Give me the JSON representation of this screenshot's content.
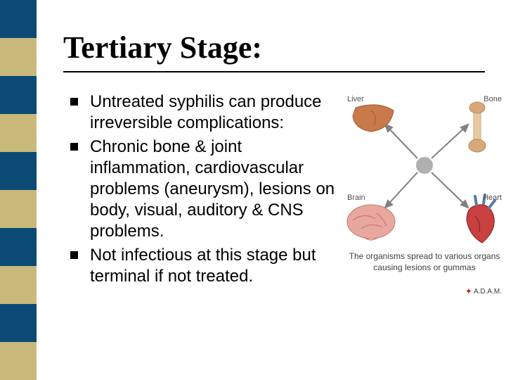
{
  "slide": {
    "title": "Tertiary Stage:",
    "bullets": [
      "Untreated syphilis can produce irreversible complications:",
      "Chronic bone & joint inflammation, cardiovascular problems (aneurysm), lesions on body, visual, auditory & CNS problems.",
      "Not infectious at this stage but terminal if not treated."
    ]
  },
  "sidebar": {
    "colors": [
      "#0a4a75",
      "#c9b97a",
      "#0a4a75",
      "#c9b97a",
      "#0a4a75",
      "#c9b97a",
      "#0a4a75",
      "#c9b97a",
      "#0a4a75",
      "#c9b97a"
    ]
  },
  "figure": {
    "labels": {
      "liver": "Liver",
      "bone": "Bone",
      "brain": "Brain",
      "heart": "Heart"
    },
    "caption": "The organisms spread to various organs causing lesions or gummas",
    "credit": "A.D.A.M.",
    "colors": {
      "liver": "#c97a4a",
      "bone": "#e8c9a0",
      "bone_end": "#d8a878",
      "brain": "#e8a8a0",
      "brain_fold": "#c87870",
      "heart": "#c84040",
      "heart_dark": "#8a2020",
      "heart_vessel": "#5a7aa8",
      "arrow": "#808080",
      "center": "#b0b0b0",
      "label": "#505050"
    }
  },
  "style": {
    "title_fontsize": 44,
    "bullet_fontsize": 24,
    "background": "#ffffff",
    "text_color": "#000000"
  }
}
